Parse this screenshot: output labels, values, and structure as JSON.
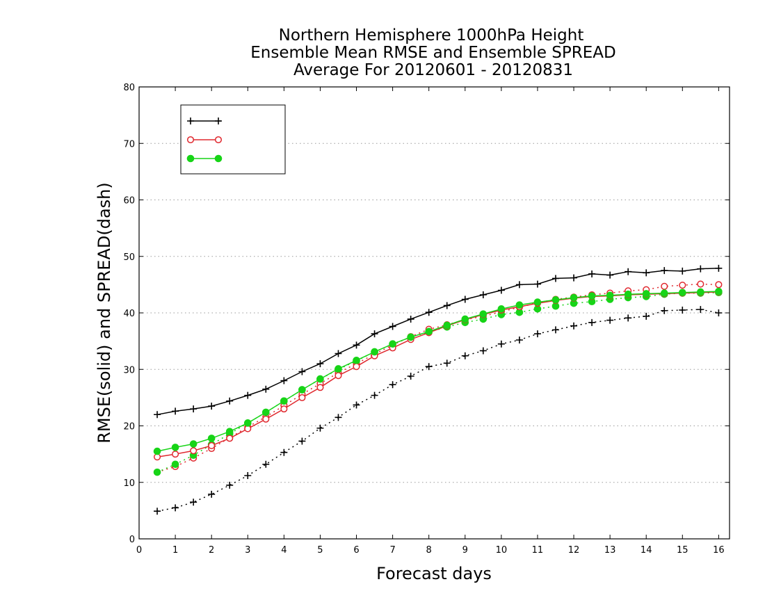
{
  "chart_data": {
    "type": "line",
    "title_lines": [
      "Northern Hemisphere 1000hPa Height",
      "Ensemble Mean RMSE and Ensemble SPREAD",
      "Average For 20120601 - 20120831"
    ],
    "xlabel": "Forecast days",
    "ylabel": "RMSE(solid) and SPREAD(dash)",
    "xlim": [
      0,
      16.3
    ],
    "ylim": [
      0,
      80
    ],
    "xticks": [
      0,
      1,
      2,
      3,
      4,
      5,
      6,
      7,
      8,
      9,
      10,
      11,
      12,
      13,
      14,
      15,
      16
    ],
    "yticks": [
      0,
      10,
      20,
      30,
      40,
      50,
      60,
      70,
      80
    ],
    "grid": "horizontal dotted",
    "legend_position": "top-left",
    "x": [
      0.5,
      1,
      1.5,
      2,
      2.5,
      3,
      3.5,
      4,
      4.5,
      5,
      5.5,
      6,
      6.5,
      7,
      7.5,
      8,
      8.5,
      9,
      9.5,
      10,
      10.5,
      11,
      11.5,
      12,
      12.5,
      13,
      13.5,
      14,
      14.5,
      15,
      15.5,
      16
    ],
    "series": [
      {
        "name": "",
        "color": "#000000",
        "marker": "plus",
        "rmse": [
          22.0,
          22.6,
          23.0,
          23.5,
          24.4,
          25.4,
          26.5,
          28.0,
          29.6,
          31.0,
          32.8,
          34.3,
          36.3,
          37.6,
          38.9,
          40.1,
          41.3,
          42.4,
          43.2,
          44.0,
          45.0,
          45.1,
          46.1,
          46.2,
          46.9,
          46.7,
          47.3,
          47.1,
          47.5,
          47.4,
          47.8,
          47.9
        ],
        "spread": [
          4.9,
          5.5,
          6.5,
          7.9,
          9.5,
          11.2,
          13.2,
          15.3,
          17.3,
          19.6,
          21.5,
          23.7,
          25.4,
          27.3,
          28.8,
          30.5,
          31.1,
          32.4,
          33.3,
          34.5,
          35.2,
          36.3,
          37.0,
          37.7,
          38.3,
          38.7,
          39.1,
          39.4,
          40.4,
          40.5,
          40.6,
          40.0
        ]
      },
      {
        "name": "",
        "color": "#e0282e",
        "marker": "open-circle",
        "rmse": [
          14.5,
          15.0,
          15.6,
          16.5,
          17.8,
          19.5,
          21.2,
          23.0,
          25.0,
          26.8,
          28.9,
          30.5,
          32.4,
          33.8,
          35.3,
          36.5,
          37.7,
          38.8,
          39.7,
          40.5,
          41.1,
          41.7,
          42.2,
          42.6,
          42.9,
          43.0,
          43.2,
          43.3,
          43.4,
          43.5,
          43.6,
          43.7
        ],
        "spread": [
          11.8,
          12.8,
          14.3,
          16.0,
          17.9,
          19.8,
          21.6,
          23.6,
          25.6,
          27.5,
          29.4,
          31.0,
          32.7,
          34.3,
          35.8,
          37.1,
          37.9,
          38.8,
          39.4,
          40.2,
          41.0,
          41.8,
          42.4,
          42.8,
          43.2,
          43.5,
          43.9,
          44.1,
          44.7,
          44.9,
          45.1,
          45.0
        ]
      },
      {
        "name": "",
        "color": "#17d417",
        "marker": "filled-circle",
        "rmse": [
          15.5,
          16.2,
          16.8,
          17.8,
          19.0,
          20.5,
          22.4,
          24.4,
          26.4,
          28.3,
          30.1,
          31.6,
          33.1,
          34.5,
          35.7,
          36.7,
          37.8,
          38.9,
          39.8,
          40.7,
          41.4,
          41.9,
          42.3,
          42.7,
          43.0,
          43.1,
          43.3,
          43.4,
          43.5,
          43.6,
          43.7,
          43.8
        ],
        "spread": [
          11.8,
          13.2,
          14.8,
          16.7,
          18.6,
          20.5,
          22.4,
          24.4,
          26.4,
          28.3,
          30.0,
          31.5,
          33.1,
          34.5,
          35.7,
          36.6,
          37.5,
          38.3,
          38.9,
          39.7,
          40.1,
          40.7,
          41.2,
          41.7,
          42.0,
          42.4,
          42.7,
          42.9,
          43.3,
          43.5,
          43.5,
          43.6
        ]
      }
    ]
  }
}
